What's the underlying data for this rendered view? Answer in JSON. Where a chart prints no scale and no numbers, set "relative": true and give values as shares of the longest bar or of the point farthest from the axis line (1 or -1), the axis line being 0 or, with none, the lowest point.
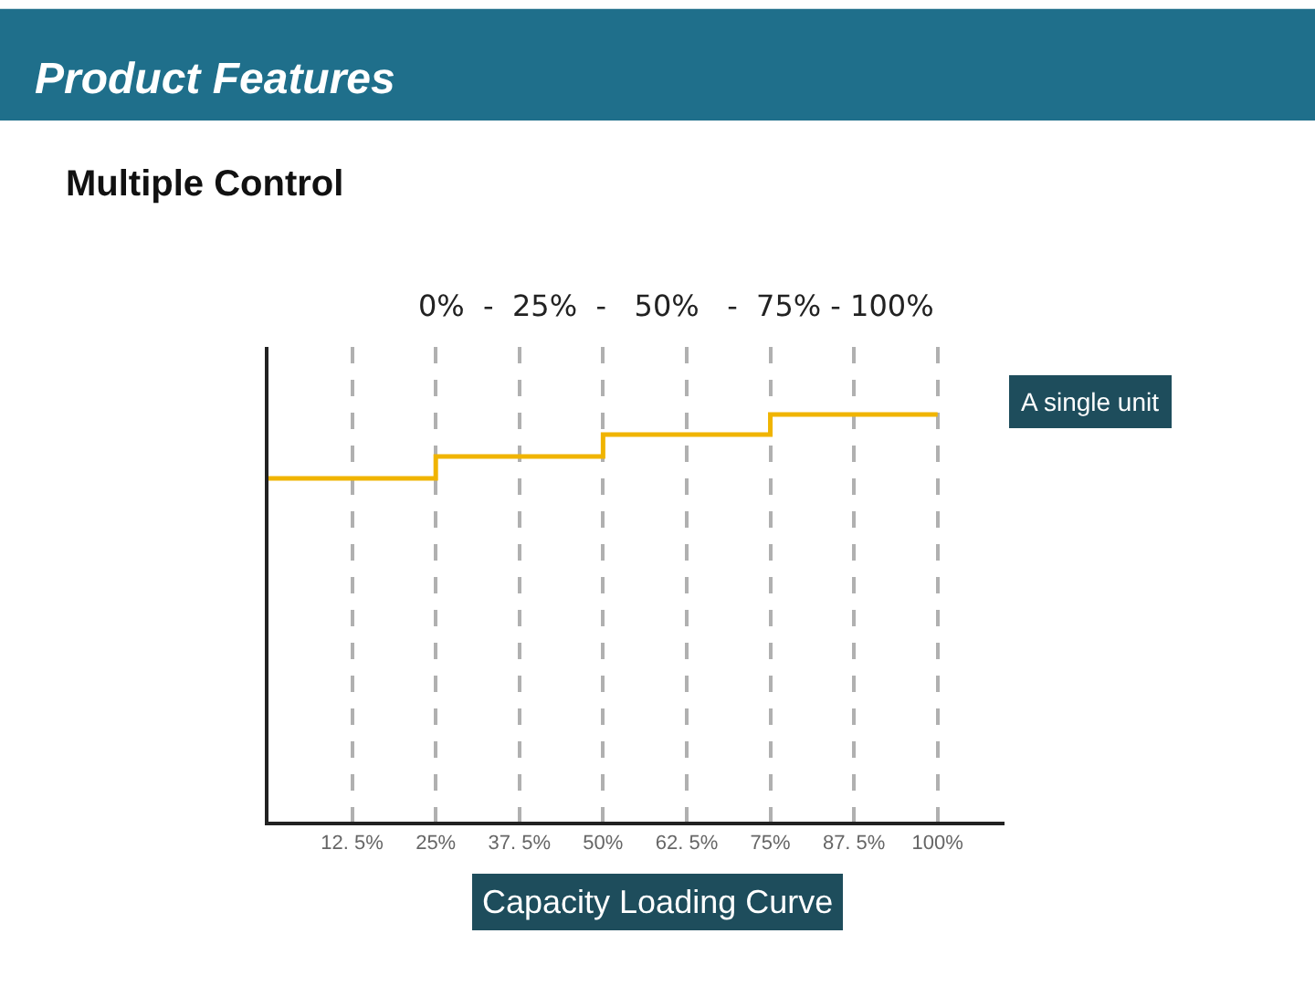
{
  "chart_data": {
    "type": "step",
    "title": "Product Features",
    "subtitle": "Multiple Control",
    "relative": true,
    "x": [
      0,
      25,
      50,
      75,
      100
    ],
    "series": [
      {
        "color": "#f0b400",
        "values": [
          0.843,
          0.897,
          0.951,
          1,
          1
        ]
      }
    ],
    "xlim": [
      0,
      110
    ],
    "xticks": [
      {
        "value": 12.5,
        "label": "12. 5%"
      },
      {
        "value": 25,
        "label": "25%"
      },
      {
        "value": 37.5,
        "label": "37. 5%"
      },
      {
        "value": 50,
        "label": "50%"
      },
      {
        "value": 62.5,
        "label": "62. 5%"
      },
      {
        "value": 75,
        "label": "75%"
      },
      {
        "value": 87.5,
        "label": "87. 5%"
      },
      {
        "value": 100,
        "label": "100%"
      }
    ],
    "grid": "x",
    "annotations": [
      "0%  -  25%  -   50%   -  75% - 100%",
      "A single unit",
      "Capacity Loading Curve"
    ]
  }
}
